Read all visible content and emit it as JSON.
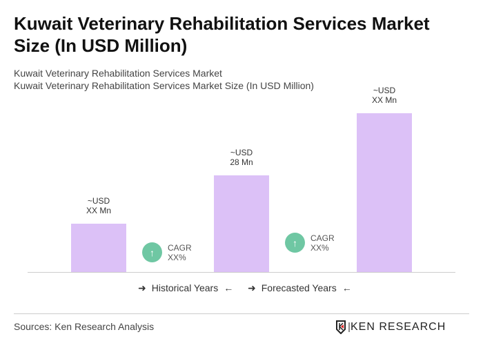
{
  "title": "Kuwait Veterinary Rehabilitation Services Market Size (In USD Million)",
  "subtitle1": "Kuwait Veterinary Rehabilitation Services Market",
  "subtitle2": "Kuwait Veterinary Rehabilitation Services Market Size (In USD Million)",
  "chart_data": {
    "type": "bar",
    "categories": [
      "",
      "",
      ""
    ],
    "values": [
      14,
      28,
      46
    ],
    "data_labels": [
      [
        "~USD",
        "XX Mn"
      ],
      [
        "~USD",
        "28 Mn"
      ],
      [
        "~USD",
        "XX Mn"
      ]
    ],
    "bar_color": "#dcc1f7",
    "cagr": [
      {
        "label": "CAGR",
        "value": "XX%"
      },
      {
        "label": "CAGR",
        "value": "XX%"
      }
    ],
    "cagr_color": "#6fc7a3",
    "legend": [
      "Historical Years",
      "Forecasted Years"
    ]
  },
  "source": "Sources: Ken Research Analysis",
  "logo": "KEN RESEARCH"
}
